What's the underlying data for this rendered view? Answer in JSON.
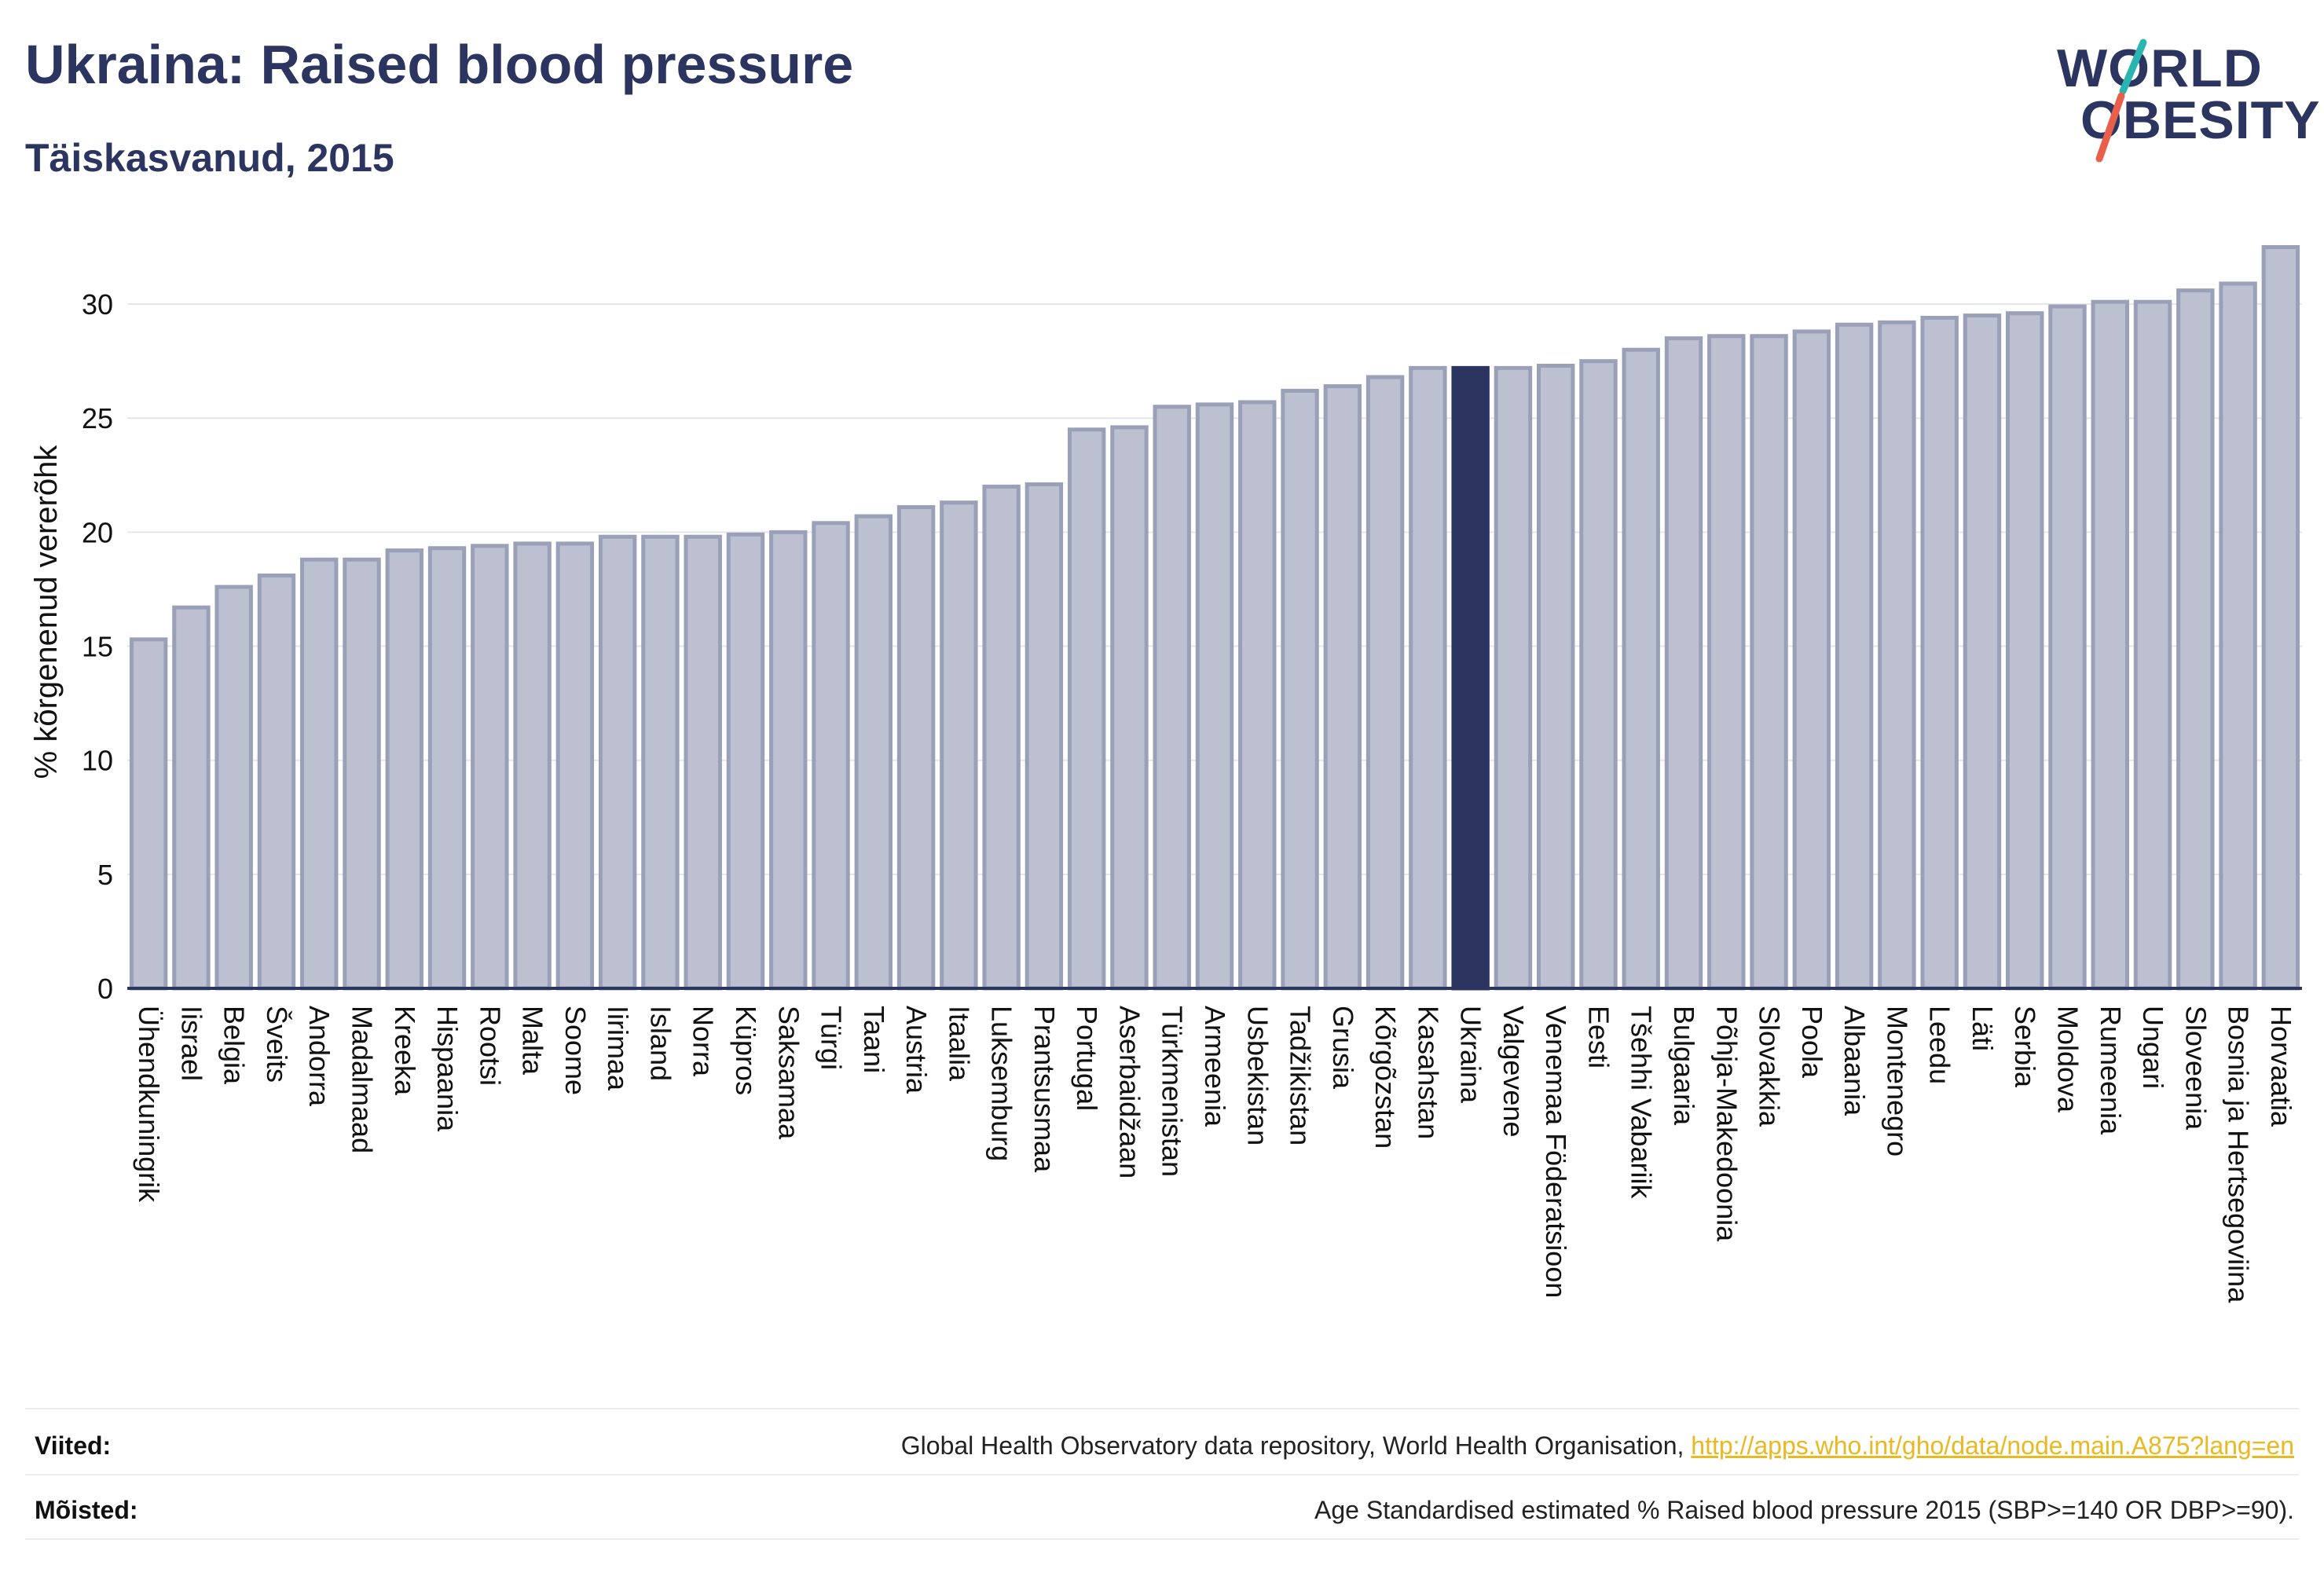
{
  "header": {
    "title": "Ukraina: Raised blood pressure",
    "subtitle": "Täiskasvanud, 2015"
  },
  "logo": {
    "line1": "WORLD",
    "line2": "OBESITY",
    "colors": {
      "text": "#2b3560",
      "slash_top": "#2bb5b0",
      "slash_bottom": "#e8604c"
    }
  },
  "colors": {
    "bar": "#bcc0d0",
    "bar_edge": "#9aa0b8",
    "highlight": "#2b3560",
    "axis": "#2b3560",
    "grid": "#e6e6ea",
    "text": "#111111"
  },
  "chart_data": {
    "type": "bar",
    "ylabel": "% kõrgenenud vererõhk",
    "ylim": [
      0,
      33
    ],
    "yticks": [
      0,
      5,
      10,
      15,
      20,
      25,
      30
    ],
    "grid": true,
    "highlight": "Ukraina",
    "categories": [
      "Ühendkuningrik",
      "Iisrael",
      "Belgia",
      "Šveits",
      "Andorra",
      "Madalmaad",
      "Kreeka",
      "Hispaania",
      "Rootsi",
      "Malta",
      "Soome",
      "Iirimaa",
      "Island",
      "Norra",
      "Küpros",
      "Saksamaa",
      "Türgi",
      "Taani",
      "Austria",
      "Itaalia",
      "Luksemburg",
      "Prantsusmaa",
      "Portugal",
      "Aserbaidžaan",
      "Türkmenistan",
      "Armeenia",
      "Usbekistan",
      "Tadžikistan",
      "Grusia",
      "Kõrgõzstan",
      "Kasahstan",
      "Ukraina",
      "Valgevene",
      "Venemaa Föderatsioon",
      "Eesti",
      "Tšehhi Vabariik",
      "Bulgaaria",
      "Põhja-Makedoonia",
      "Slovakkia",
      "Poola",
      "Albaania",
      "Montenegro",
      "Leedu",
      "Läti",
      "Serbia",
      "Moldova",
      "Rumeenia",
      "Ungari",
      "Sloveenia",
      "Bosnia ja Hertsegoviina",
      "Horvaatia"
    ],
    "values": [
      15.3,
      16.7,
      17.6,
      18.1,
      18.8,
      18.8,
      19.2,
      19.3,
      19.4,
      19.5,
      19.5,
      19.8,
      19.8,
      19.8,
      19.9,
      20.0,
      20.4,
      20.7,
      21.1,
      21.3,
      22.0,
      22.1,
      24.5,
      24.6,
      25.5,
      25.6,
      25.7,
      26.2,
      26.4,
      26.8,
      27.2,
      27.2,
      27.2,
      27.3,
      27.5,
      28.0,
      28.5,
      28.6,
      28.6,
      28.8,
      29.1,
      29.2,
      29.4,
      29.5,
      29.6,
      29.9,
      30.1,
      30.1,
      30.6,
      30.9,
      32.5
    ]
  },
  "footer": {
    "sources_label": "Viited:",
    "sources_text": "Global Health Observatory data repository, World Health Organisation, ",
    "sources_link": "http://apps.who.int/gho/data/node.main.A875?lang=en",
    "definitions_label": "Mõisted:",
    "definitions_text": "Age Standardised estimated % Raised blood pressure 2015 (SBP>=140 OR DBP>=90)."
  }
}
